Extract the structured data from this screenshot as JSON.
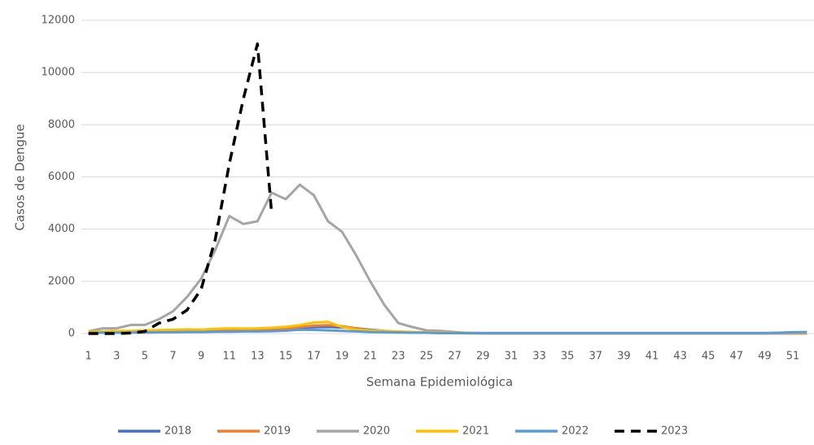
{
  "chart_data": {
    "type": "line",
    "x_label": "Semana Epidemiológica",
    "y_label": "Casos de Dengue",
    "categories": [
      1,
      null,
      3,
      null,
      5,
      null,
      7,
      null,
      9,
      null,
      11,
      null,
      13,
      null,
      15,
      null,
      17,
      null,
      19,
      null,
      21,
      null,
      23,
      null,
      25,
      null,
      27,
      null,
      29,
      null,
      31,
      null,
      33,
      null,
      35,
      null,
      37,
      null,
      39,
      null,
      41,
      null,
      43,
      null,
      45,
      null,
      47,
      null,
      49,
      null,
      51,
      null
    ],
    "ylim": [
      0,
      12000
    ],
    "yticks": [
      0,
      2000,
      4000,
      6000,
      8000,
      10000,
      12000
    ],
    "grid": true,
    "legend": "bottom",
    "series": [
      {
        "name": "2018",
        "color": "#4472c4",
        "values": [
          50,
          60,
          70,
          80,
          80,
          90,
          100,
          110,
          120,
          130,
          140,
          150,
          160,
          180,
          200,
          230,
          240,
          250,
          230,
          200,
          150,
          100,
          70,
          50,
          40,
          30,
          20,
          20,
          10,
          10,
          10,
          10,
          10,
          10,
          10,
          10,
          10,
          10,
          10,
          10,
          10,
          10,
          10,
          10,
          10,
          10,
          10,
          10,
          10,
          10,
          10,
          10
        ]
      },
      {
        "name": "2019",
        "color": "#ed7d31",
        "values": [
          30,
          40,
          50,
          50,
          60,
          70,
          80,
          80,
          90,
          100,
          110,
          120,
          130,
          150,
          180,
          250,
          300,
          320,
          280,
          200,
          120,
          80,
          50,
          40,
          30,
          20,
          20,
          10,
          10,
          10,
          10,
          10,
          10,
          10,
          10,
          10,
          10,
          10,
          10,
          10,
          10,
          10,
          10,
          10,
          10,
          10,
          10,
          10,
          10,
          10,
          10,
          10
        ]
      },
      {
        "name": "2020",
        "color": "#a5a5a5",
        "values": [
          80,
          200,
          200,
          330,
          330,
          550,
          850,
          1400,
          2100,
          3200,
          4500,
          4200,
          4300,
          5400,
          5150,
          5700,
          5300,
          4300,
          3900,
          3000,
          2000,
          1100,
          400,
          250,
          120,
          100,
          60,
          20,
          10,
          10,
          10,
          10,
          10,
          10,
          10,
          10,
          10,
          10,
          10,
          10,
          10,
          10,
          10,
          10,
          10,
          10,
          10,
          10,
          10,
          10,
          20,
          20
        ]
      },
      {
        "name": "2021",
        "color": "#ffc000",
        "values": [
          60,
          80,
          100,
          100,
          120,
          130,
          150,
          160,
          150,
          180,
          200,
          190,
          200,
          220,
          260,
          320,
          420,
          450,
          250,
          150,
          120,
          100,
          80,
          60,
          50,
          40,
          30,
          30,
          20,
          20,
          20,
          20,
          20,
          20,
          20,
          20,
          20,
          20,
          20,
          20,
          20,
          20,
          20,
          20,
          20,
          20,
          20,
          20,
          20,
          30,
          40,
          40
        ]
      },
      {
        "name": "2022",
        "color": "#5b9bd5",
        "values": [
          20,
          30,
          30,
          40,
          40,
          50,
          50,
          60,
          60,
          70,
          70,
          80,
          80,
          90,
          110,
          150,
          140,
          120,
          100,
          80,
          60,
          50,
          40,
          30,
          30,
          20,
          20,
          20,
          20,
          20,
          20,
          20,
          20,
          20,
          20,
          20,
          20,
          20,
          20,
          20,
          20,
          20,
          20,
          20,
          20,
          20,
          20,
          20,
          20,
          30,
          50,
          60
        ]
      },
      {
        "name": "2023",
        "color": "#000000",
        "dashed": true,
        "values": [
          0,
          0,
          0,
          20,
          80,
          400,
          550,
          900,
          1700,
          3600,
          6500,
          9000,
          11100,
          4600,
          null,
          null,
          null,
          null,
          null,
          null,
          null,
          null,
          null,
          null,
          null,
          null,
          null,
          null,
          null,
          null,
          null,
          null,
          null,
          null,
          null,
          null,
          null,
          null,
          null,
          null,
          null,
          null,
          null,
          null,
          null,
          null,
          null,
          null,
          null,
          null,
          null,
          null
        ]
      }
    ]
  }
}
